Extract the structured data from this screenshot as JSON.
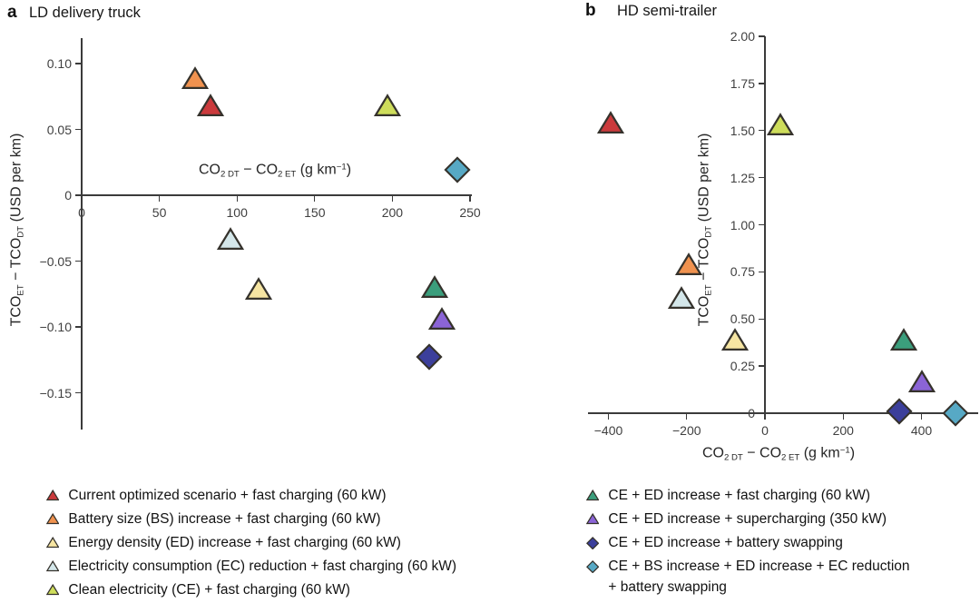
{
  "figure": {
    "panels": [
      {
        "panel_label": "a",
        "title": "LD delivery truck"
      },
      {
        "panel_label": "b",
        "title": "HD semi-trailer"
      }
    ]
  },
  "axis_labels": {
    "x_text": "CO2 DT − CO2 ET (g km−1)",
    "y_text": "TCOET − TCODT (USD per km)",
    "x_parts": [
      [
        "t",
        "CO"
      ],
      [
        "sub",
        "2 DT"
      ],
      [
        "t",
        " − CO"
      ],
      [
        "sub",
        "2 ET"
      ],
      [
        "t",
        " (g km"
      ],
      [
        "sup",
        "−1"
      ],
      [
        "t",
        ")"
      ]
    ],
    "y_parts": [
      [
        "t",
        "TCO"
      ],
      [
        "sub",
        "ET"
      ],
      [
        "t",
        " − TCO"
      ],
      [
        "sub",
        "DT"
      ],
      [
        "t",
        " (USD per km)"
      ]
    ]
  },
  "chart_data": [
    {
      "type": "scatter",
      "panel": "a",
      "title": "LD delivery truck",
      "xlabel": "CO2 DT − CO2 ET (g km−1)",
      "ylabel": "TCOET − TCODT (USD per km)",
      "xlim": [
        0,
        260
      ],
      "ylim": [
        -0.18,
        0.12
      ],
      "grid": false,
      "xticks": [
        {
          "v": 0,
          "label": "0"
        },
        {
          "v": 50,
          "label": "50"
        },
        {
          "v": 100,
          "label": "100"
        },
        {
          "v": 150,
          "label": "150"
        },
        {
          "v": 200,
          "label": "200"
        },
        {
          "v": 250,
          "label": "250"
        }
      ],
      "yticks": [
        {
          "v": 0.1,
          "label": "0.10"
        },
        {
          "v": 0.05,
          "label": "0.05"
        },
        {
          "v": 0,
          "label": "0"
        },
        {
          "v": -0.05,
          "label": "−0.05"
        },
        {
          "v": -0.1,
          "label": "−0.10"
        },
        {
          "v": -0.15,
          "label": "−0.15"
        }
      ],
      "points": [
        {
          "key": "current-optimized",
          "label": "Current optimized scenario + fast charging (60 kW)",
          "marker": "triangle",
          "color": "#cb3a3c",
          "x": 83,
          "y": 0.068
        },
        {
          "key": "bs-increase",
          "label": "Battery size (BS) increase + fast charging (60 kW)",
          "marker": "triangle",
          "color": "#f0924f",
          "x": 73,
          "y": 0.089
        },
        {
          "key": "ed-increase",
          "label": "Energy density (ED) increase + fast charging (60 kW)",
          "marker": "triangle",
          "color": "#f6e5a2",
          "x": 114,
          "y": -0.071
        },
        {
          "key": "ec-reduction",
          "label": "Electricity consumption (EC) reduction + fast charging (60 kW)",
          "marker": "triangle",
          "color": "#d4e7ea",
          "x": 96,
          "y": -0.033
        },
        {
          "key": "clean-electricity",
          "label": "Clean electricity (CE) + fast charging (60 kW)",
          "marker": "triangle",
          "color": "#cedd5b",
          "x": 197,
          "y": 0.068
        },
        {
          "key": "ce-ed-fast-charging",
          "label": "CE + ED increase + fast charging (60 kW)",
          "marker": "triangle",
          "color": "#3b9e7c",
          "x": 227,
          "y": -0.07
        },
        {
          "key": "ce-ed-supercharging",
          "label": "CE + ED increase + supercharging (350 kW)",
          "marker": "triangle",
          "color": "#8b64d6",
          "x": 232,
          "y": -0.094
        },
        {
          "key": "ce-ed-battery-swapping",
          "label": "CE + ED increase + battery swapping",
          "marker": "diamond",
          "color": "#3c3f9b",
          "x": 224,
          "y": -0.123
        },
        {
          "key": "ce-bs-ed-ec-battery-swapping",
          "label": "CE + BS increase + ED increase + EC reduction + battery swapping",
          "marker": "diamond",
          "color": "#57a9c5",
          "x": 242,
          "y": 0.019
        }
      ]
    },
    {
      "type": "scatter",
      "panel": "b",
      "title": "HD semi-trailer",
      "xlabel": "CO2 DT − CO2 ET (g km−1)",
      "ylabel": "TCOET − TCODT (USD per km)",
      "xlim": [
        -450,
        540
      ],
      "ylim": [
        0,
        2.0
      ],
      "grid": false,
      "xticks": [
        {
          "v": -400,
          "label": "−400"
        },
        {
          "v": -200,
          "label": "−200"
        },
        {
          "v": 0,
          "label": "0"
        },
        {
          "v": 200,
          "label": "200"
        },
        {
          "v": 400,
          "label": "400"
        }
      ],
      "yticks": [
        {
          "v": 2.0,
          "label": "2.00"
        },
        {
          "v": 1.75,
          "label": "1.75"
        },
        {
          "v": 1.5,
          "label": "1.50"
        },
        {
          "v": 1.25,
          "label": "1.25"
        },
        {
          "v": 1.0,
          "label": "1.00"
        },
        {
          "v": 0.75,
          "label": "0.75"
        },
        {
          "v": 0.5,
          "label": "0.50"
        },
        {
          "v": 0.25,
          "label": "0.25"
        },
        {
          "v": 0,
          "label": "0"
        }
      ],
      "points": [
        {
          "key": "current-optimized",
          "label": "Current optimized scenario + fast charging (60 kW)",
          "marker": "triangle",
          "color": "#cb3a3c",
          "x": -395,
          "y": 1.54
        },
        {
          "key": "bs-increase",
          "label": "Battery size (BS) increase + fast charging (60 kW)",
          "marker": "triangle",
          "color": "#f0924f",
          "x": -195,
          "y": 0.79
        },
        {
          "key": "ed-increase",
          "label": "Energy density (ED) increase + fast charging (60 kW)",
          "marker": "triangle",
          "color": "#f6e5a2",
          "x": -76,
          "y": 0.39
        },
        {
          "key": "ec-reduction",
          "label": "Electricity consumption (EC) reduction + fast charging (60 kW)",
          "marker": "triangle",
          "color": "#d4e7ea",
          "x": -214,
          "y": 0.61
        },
        {
          "key": "clean-electricity",
          "label": "Clean electricity (CE) + fast charging (60 kW)",
          "marker": "triangle",
          "color": "#cedd5b",
          "x": 39,
          "y": 1.53
        },
        {
          "key": "ce-ed-fast-charging",
          "label": "CE + ED increase + fast charging (60 kW)",
          "marker": "triangle",
          "color": "#3b9e7c",
          "x": 354,
          "y": 0.39
        },
        {
          "key": "ce-ed-supercharging",
          "label": "CE + ED increase + supercharging (350 kW)",
          "marker": "triangle",
          "color": "#8b64d6",
          "x": 402,
          "y": 0.17
        },
        {
          "key": "ce-ed-battery-swapping",
          "label": "CE + ED increase + battery swapping",
          "marker": "diamond",
          "color": "#3c3f9b",
          "x": 344,
          "y": 0.01
        },
        {
          "key": "ce-bs-ed-ec-battery-swapping",
          "label": "CE + BS increase + ED increase + EC reduction + battery swapping",
          "marker": "diamond",
          "color": "#57a9c5",
          "x": 487,
          "y": 0.0
        }
      ]
    }
  ],
  "legend": {
    "columns": [
      {
        "items": [
          {
            "key": "current-optimized",
            "marker": "triangle",
            "color": "#cb3a3c",
            "label": "Current optimized scenario + fast charging (60 kW)"
          },
          {
            "key": "bs-increase",
            "marker": "triangle",
            "color": "#f0924f",
            "label": "Battery size (BS) increase + fast charging (60 kW)"
          },
          {
            "key": "ed-increase",
            "marker": "triangle",
            "color": "#f6e5a2",
            "label": "Energy density (ED) increase + fast charging (60 kW)"
          },
          {
            "key": "ec-reduction",
            "marker": "triangle",
            "color": "#d4e7ea",
            "label": "Electricity consumption (EC) reduction + fast charging (60 kW)"
          },
          {
            "key": "clean-electricity",
            "marker": "triangle",
            "color": "#cedd5b",
            "label": "Clean electricity (CE) + fast charging (60 kW)"
          }
        ]
      },
      {
        "items": [
          {
            "key": "ce-ed-fast-charging",
            "marker": "triangle",
            "color": "#3b9e7c",
            "label": "CE + ED increase + fast charging (60 kW)"
          },
          {
            "key": "ce-ed-supercharging",
            "marker": "triangle",
            "color": "#8b64d6",
            "label": "CE + ED increase + supercharging (350 kW)"
          },
          {
            "key": "ce-ed-battery-swapping",
            "marker": "diamond",
            "color": "#3c3f9b",
            "label": "CE + ED increase + battery swapping"
          },
          {
            "key": "ce-bs-ed-ec-battery-swapping",
            "marker": "diamond",
            "color": "#57a9c5",
            "label": "CE + BS increase + ED increase + EC reduction\n+ battery swapping"
          }
        ]
      }
    ]
  }
}
